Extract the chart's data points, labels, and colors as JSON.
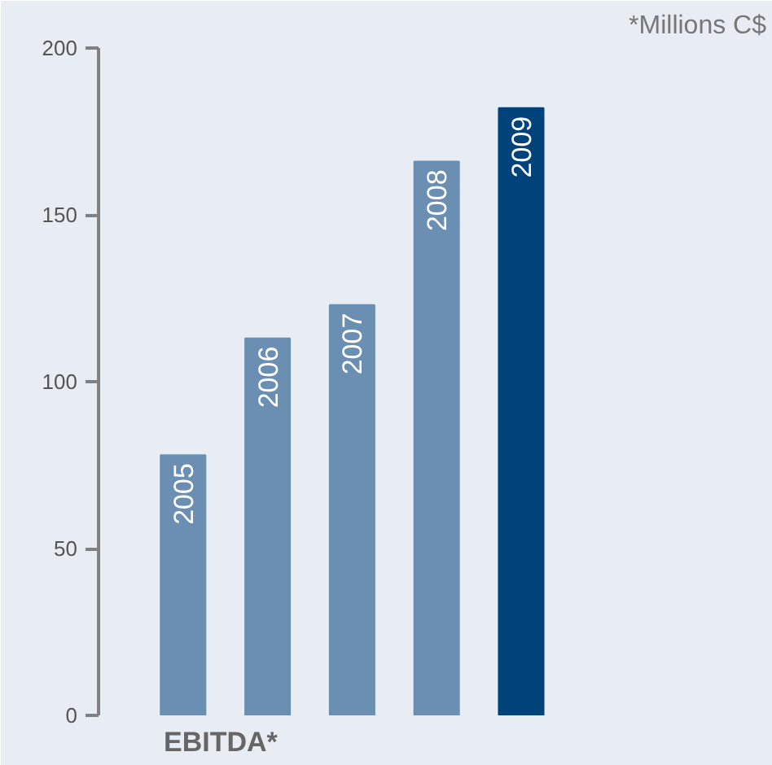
{
  "chart_data": {
    "type": "bar",
    "title": "EBITDA*",
    "annotations": [
      "*Millions C$"
    ],
    "categories": [
      "2005",
      "2006",
      "2007",
      "2008",
      "2009"
    ],
    "values": [
      78,
      113,
      123,
      166,
      182
    ],
    "colors": [
      "#6a8fb3",
      "#6a8fb3",
      "#6a8fb3",
      "#6a8fb3",
      "#00427a"
    ],
    "ylim": [
      0,
      200
    ],
    "yticks": [
      0,
      50,
      100,
      150,
      200
    ],
    "grid": false
  }
}
